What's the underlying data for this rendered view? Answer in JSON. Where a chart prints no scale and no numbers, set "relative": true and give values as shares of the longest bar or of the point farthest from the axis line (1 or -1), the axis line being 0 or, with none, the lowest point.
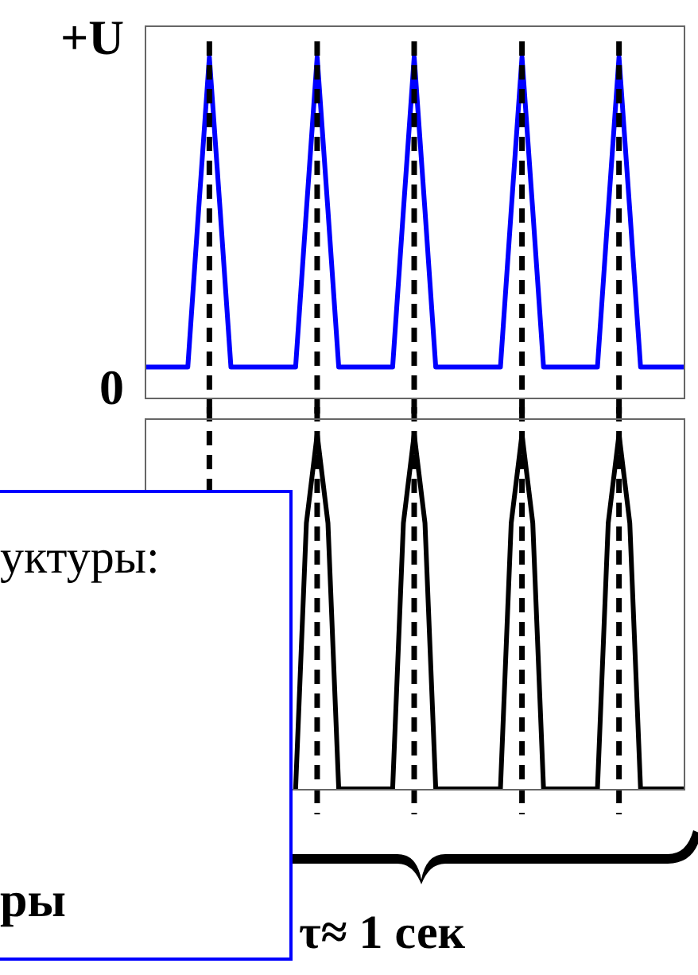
{
  "chart_data": [
    {
      "type": "line",
      "relative": true,
      "categories": [
        null,
        null,
        null,
        null,
        null,
        null,
        null,
        null,
        null,
        null,
        null,
        null,
        null,
        null,
        null,
        null,
        null,
        null,
        null,
        null,
        null,
        null,
        null,
        null,
        null,
        null,
        null,
        null,
        null,
        null,
        null,
        null,
        null,
        null,
        null,
        null,
        null,
        null,
        null,
        null,
        null,
        null,
        null,
        null,
        null,
        null,
        null,
        null,
        null,
        null,
        null
      ],
      "series": [
        {
          "color": "#0000ff",
          "values": [
            0.09,
            0.09,
            0.09,
            0.09,
            0.09,
            0.55,
            1,
            0.55,
            0.09,
            0.09,
            0.09,
            0.09,
            0.09,
            0.09,
            0.09,
            0.55,
            1,
            0.55,
            0.09,
            0.09,
            0.09,
            0.09,
            0.09,
            0.09,
            0.55,
            1,
            0.55,
            0.09,
            0.09,
            0.09,
            0.09,
            0.09,
            0.09,
            0.09,
            0.55,
            1,
            0.55,
            0.09,
            0.09,
            0.09,
            0.09,
            0.09,
            0.09,
            0.55,
            1,
            0.55,
            0.09,
            0.09,
            0.09,
            0.09,
            0.09
          ]
        }
      ],
      "grid": "x",
      "annotations": [
        "+U",
        "0"
      ]
    },
    {
      "type": "line",
      "relative": true,
      "categories": [
        null,
        null,
        null,
        null,
        null,
        null,
        null,
        null,
        null,
        null,
        null,
        null,
        null,
        null,
        null,
        null,
        null,
        null,
        null,
        null,
        null,
        null,
        null,
        null,
        null,
        null,
        null,
        null,
        null,
        null,
        null,
        null,
        null,
        null,
        null,
        null,
        null,
        null,
        null,
        null,
        null,
        null,
        null,
        null,
        null,
        null,
        null,
        null,
        null,
        null,
        null
      ],
      "series": [
        {
          "color": "#000000",
          "values": [
            null,
            null,
            null,
            null,
            null,
            null,
            null,
            null,
            null,
            null,
            null,
            null,
            null,
            null,
            0,
            0.75,
            1,
            0.75,
            0,
            0,
            0,
            0,
            0,
            0,
            0.75,
            1,
            0.75,
            0,
            0,
            0,
            0,
            0,
            0,
            0,
            0.75,
            1,
            0.75,
            0,
            0,
            0,
            0,
            0,
            0,
            0.75,
            1,
            0.75,
            0,
            0,
            0,
            0,
            0
          ]
        }
      ],
      "grid": "x",
      "annotations": [
        "уктуры:",
        "ры",
        "τ≈ 1 сек"
      ]
    }
  ]
}
